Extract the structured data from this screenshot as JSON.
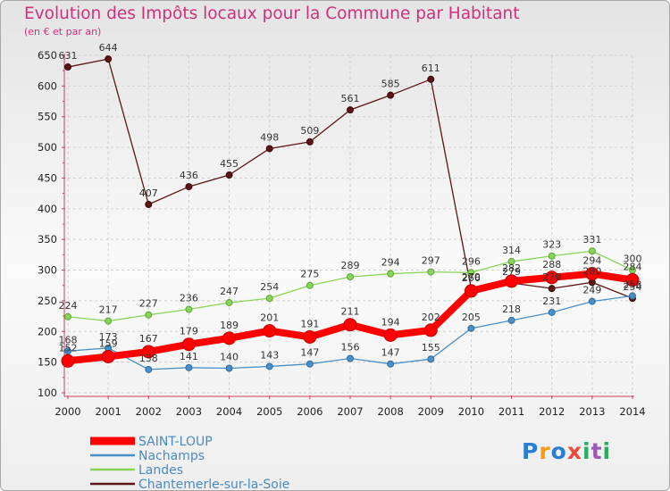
{
  "chart_data": {
    "type": "line",
    "title": "Evolution des Impôts locaux pour la Commune par Habitant",
    "subtitle": "(en € et par an)",
    "xlabel": "",
    "ylabel": "",
    "ylim": [
      100,
      650
    ],
    "yticks": [
      100,
      150,
      200,
      250,
      300,
      350,
      400,
      450,
      500,
      550,
      600,
      650
    ],
    "x": [
      2000,
      2001,
      2002,
      2003,
      2004,
      2005,
      2006,
      2007,
      2008,
      2009,
      2010,
      2011,
      2012,
      2013,
      2014
    ],
    "grid": true,
    "legend_position": "bottom-left",
    "series": [
      {
        "name": "Chantemerle-sur-la-Soie",
        "color": "#5c1414",
        "values": [
          631,
          644,
          407,
          436,
          455,
          498,
          509,
          561,
          585,
          611,
          270,
          279,
          270,
          280,
          254
        ]
      },
      {
        "name": "Landes",
        "color": "#88d45a",
        "values": [
          224,
          217,
          227,
          236,
          247,
          254,
          275,
          289,
          294,
          297,
          296,
          314,
          323,
          331,
          300
        ]
      },
      {
        "name": "Nachamps",
        "color": "#4a90c8",
        "values": [
          168,
          173,
          138,
          141,
          140,
          143,
          147,
          156,
          147,
          155,
          205,
          218,
          231,
          249,
          258
        ]
      },
      {
        "name": "SAINT-LOUP",
        "color": "#ff0000",
        "values": [
          152,
          159,
          167,
          179,
          189,
          201,
          191,
          211,
          194,
          202,
          266,
          282,
          288,
          294,
          284
        ]
      }
    ],
    "legend_order": [
      "SAINT-LOUP",
      "Nachamps",
      "Landes",
      "Chantemerle-sur-la-Soie"
    ]
  },
  "logo": {
    "p": "P",
    "r": "r",
    "o": "o",
    "x": "x",
    "i": "i",
    "t": "t",
    "i2": "i"
  }
}
